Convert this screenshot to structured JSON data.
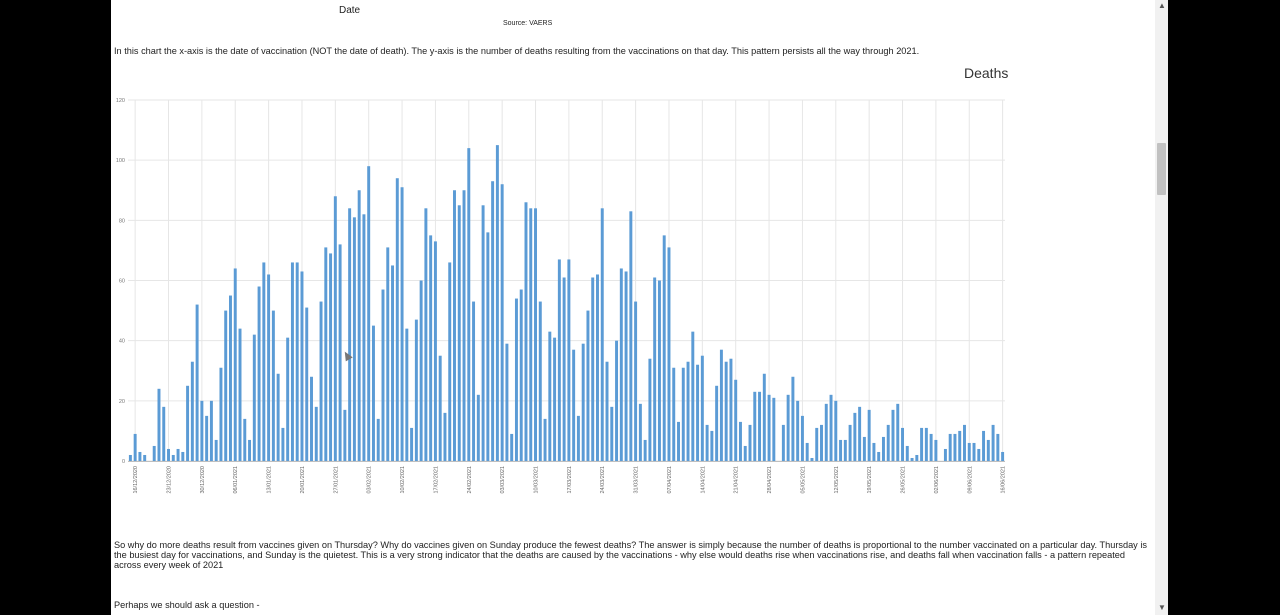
{
  "top_fragment": {
    "xlabel": "Date",
    "source": "Source: VAERS"
  },
  "intro_text": "In this chart the x-axis is the date of vaccination (NOT the date of death). The y-axis is the number of deaths resulting from the vaccinations on that day. This pattern persists all the way through 2021.",
  "conclusion_text": "So why do more deaths result from vaccines given on Thursday? Why do vaccines given on Sunday produce the fewest deaths? The answer is simply because the number of deaths is proportional to the number vaccinated on a particular day. Thursday is the busiest day for vaccinations, and Sunday is the quietest. This is a very strong indicator that the deaths are caused by the vaccinations - why else would deaths rise when vaccinations rise, and deaths fall when vaccination falls - a pattern repeated across every week of 2021",
  "question_text": "Perhaps we should ask a question -",
  "colors": {
    "bar": "#5b9bd5",
    "grid": "#e6e6e6",
    "axis": "#bfbfbf"
  },
  "chart_data": {
    "type": "bar",
    "title": "Deaths",
    "xlabel": "",
    "ylabel": "",
    "ylim": [
      0,
      120
    ],
    "yticks": [
      0,
      20,
      40,
      60,
      80,
      100,
      120
    ],
    "grid": true,
    "x_tick_labels": [
      "16/12/2020",
      "23/12/2020",
      "30/12/2020",
      "06/01/2021",
      "13/01/2021",
      "20/01/2021",
      "27/01/2021",
      "03/02/2021",
      "10/02/2021",
      "17/02/2021",
      "24/02/2021",
      "03/03/2021",
      "10/03/2021",
      "17/03/2021",
      "24/03/2021",
      "31/03/2021",
      "07/04/2021",
      "14/04/2021",
      "21/04/2021",
      "28/04/2021",
      "05/05/2021",
      "12/05/2021",
      "19/05/2021",
      "26/05/2021",
      "02/06/2021",
      "09/06/2021",
      "16/06/2021"
    ],
    "series": [
      {
        "values": [
          2,
          9,
          3,
          2,
          0,
          5,
          24,
          18,
          4,
          2,
          4,
          3,
          25,
          33,
          52,
          20,
          15,
          20,
          7,
          31,
          50,
          55,
          64,
          44,
          14,
          7,
          42,
          58,
          66,
          62,
          50,
          29,
          11,
          41,
          66,
          66,
          63,
          51,
          28,
          18,
          53,
          71,
          69,
          88,
          72,
          17,
          84,
          81,
          90,
          82,
          98,
          45,
          14,
          57,
          71,
          65,
          94,
          91,
          44,
          11,
          47,
          60,
          84,
          75,
          73,
          35,
          16,
          66,
          90,
          85,
          90,
          104,
          53,
          22,
          85,
          76,
          93,
          105,
          92,
          39,
          9,
          54,
          57,
          86,
          84,
          84,
          53,
          14,
          43,
          41,
          67,
          61,
          67,
          37,
          15,
          39,
          50,
          61,
          62,
          84,
          33,
          18,
          40,
          64,
          63,
          83,
          53,
          19,
          7,
          34,
          61,
          60,
          75,
          71,
          31,
          13,
          31,
          33,
          43,
          32,
          35,
          12,
          10,
          25,
          37,
          33,
          34,
          27,
          13,
          5,
          12,
          23,
          23,
          29,
          22,
          21,
          0,
          12,
          22,
          28,
          20,
          15,
          6,
          1,
          11,
          12,
          19,
          22,
          20,
          7,
          7,
          12,
          16,
          18,
          8,
          17,
          6,
          3,
          8,
          12,
          17,
          19,
          11,
          5,
          1,
          2,
          11,
          11,
          9,
          7,
          0,
          4,
          9,
          9,
          10,
          12,
          6,
          6,
          4,
          10,
          7,
          12,
          9,
          3
        ]
      }
    ]
  }
}
